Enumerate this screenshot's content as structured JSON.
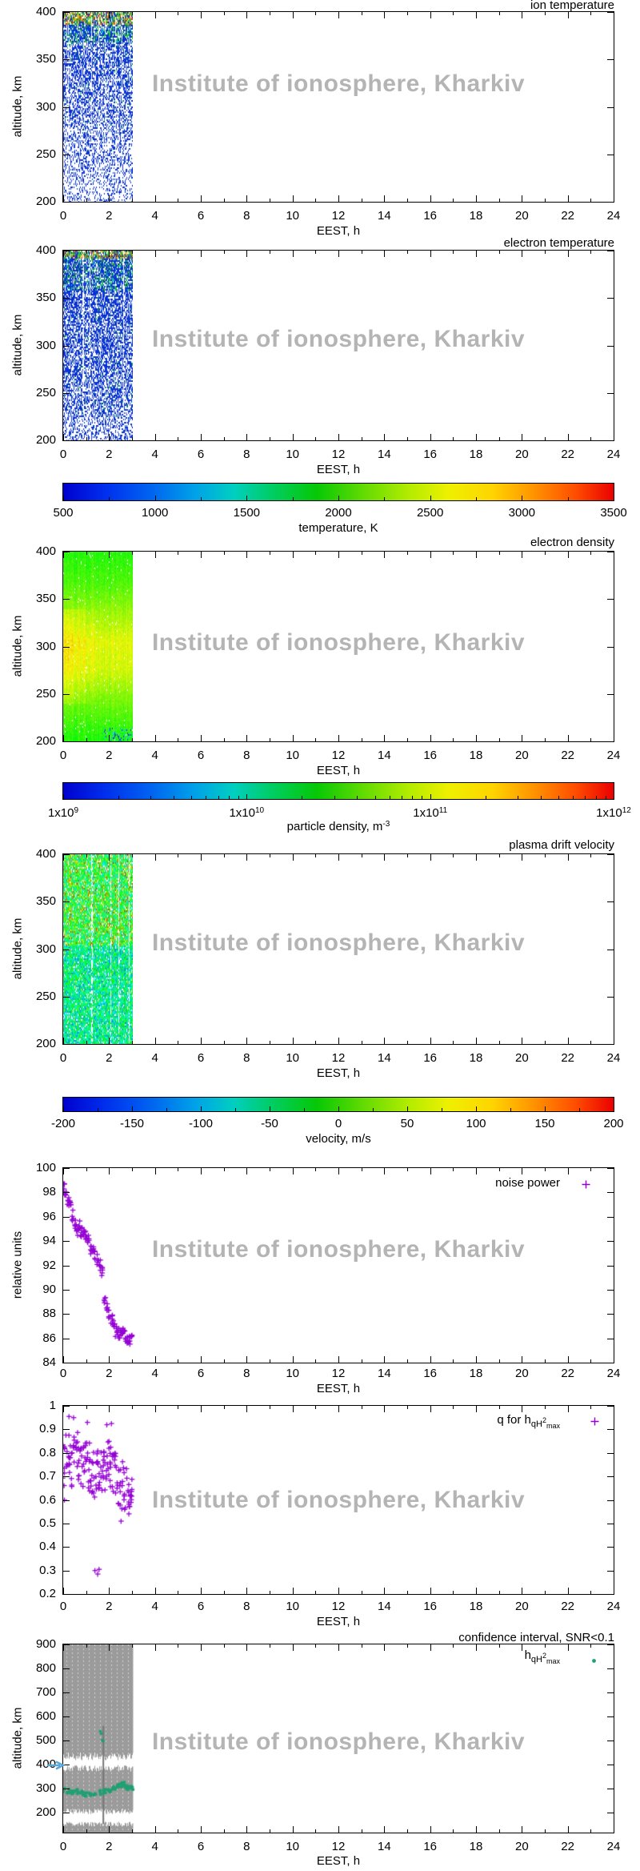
{
  "watermark": "Institute of ionosphere, Kharkiv",
  "x_axis": {
    "label": "EEST, h",
    "range": [
      0,
      24
    ],
    "major_step": 2,
    "minor_step": 1,
    "tick_labels": [
      "0",
      "2",
      "4",
      "6",
      "8",
      "10",
      "12",
      "14",
      "16",
      "18",
      "20",
      "22",
      "24"
    ]
  },
  "colors": {
    "marker_purple": "#9400d3",
    "marker_green": "#1fa173",
    "confidence_gray": "#9b9b9b",
    "watermark_gray": "#b4b4b4",
    "arrow_blue": "#5aa7d8",
    "heat_blue": "#0a2ee2",
    "heat_green": "#2fc42f"
  },
  "chart_data": [
    {
      "kind": "heatmap",
      "type": "heatmap",
      "style": "ti",
      "title": "ion temperature",
      "ylabel": "altitude, km",
      "xlabel": "EEST, h",
      "y_range": [
        200,
        400
      ],
      "data_time_extent": [
        0,
        3.05
      ],
      "y_ticks": [
        {
          "l": "400",
          "v": 400
        },
        {
          "l": "350",
          "v": 350
        },
        {
          "l": "300",
          "v": 300
        },
        {
          "l": "250",
          "v": 250
        },
        {
          "l": "200",
          "v": 200
        }
      ],
      "data_summary": "Ion temperature measured 00:00-03:00 EEST, 200-400 km; mostly 500-1200 K (blue) with 1500-3500 K (green/yellow/red) above ~380 km; sparse data below 260 km"
    },
    {
      "kind": "heatmap",
      "type": "heatmap",
      "style": "te",
      "title": "electron temperature",
      "ylabel": "altitude, km",
      "xlabel": "EEST, h",
      "y_range": [
        200,
        400
      ],
      "data_time_extent": [
        0,
        3.05
      ],
      "y_ticks": [
        {
          "l": "400",
          "v": 400
        },
        {
          "l": "350",
          "v": 350
        },
        {
          "l": "300",
          "v": 300
        },
        {
          "l": "250",
          "v": 250
        },
        {
          "l": "200",
          "v": 200
        }
      ],
      "data_summary": "Electron temperature 00:00-03:00 EEST, 200-400 km; mostly 500-1200 K (blue), 1500-3500 K mixed colors above ~390 km; sparse below 230 km"
    },
    {
      "kind": "colorbar",
      "scale": "linear",
      "label": "temperature, K",
      "range": [
        500,
        3500
      ],
      "tick_values": [
        500,
        1000,
        1500,
        2000,
        2500,
        3000,
        3500
      ],
      "tick_labels": [
        "500",
        "1000",
        "1500",
        "2000",
        "2500",
        "3000",
        "3500"
      ]
    },
    {
      "kind": "heatmap",
      "type": "heatmap",
      "style": "ne",
      "title": "electron density",
      "ylabel": "altitude, km",
      "xlabel": "EEST, h",
      "y_range": [
        200,
        400
      ],
      "data_time_extent": [
        0,
        3.05
      ],
      "y_ticks": [
        {
          "l": "400",
          "v": 400
        },
        {
          "l": "350",
          "v": 350
        },
        {
          "l": "300",
          "v": 300
        },
        {
          "l": "250",
          "v": 250
        },
        {
          "l": "200",
          "v": 200
        }
      ],
      "data_summary": "Electron density 00:00-03:00 EEST; ~1x10^10 - 1x10^11 m^-3; maximum (yellow) near 280-310 km, green toward 200 and 400 km, few blue/cyan specks below 215 km after 02:00"
    },
    {
      "kind": "colorbar",
      "scale": "log",
      "label_main": "particle density, m",
      "label_sup": "-3",
      "range_exponents": [
        9,
        12
      ],
      "tick_labels": [
        {
          "base": "1x10",
          "sup": "9",
          "frac": 0
        },
        {
          "base": "1x10",
          "sup": "10",
          "frac": 0.3333
        },
        {
          "base": "1x10",
          "sup": "11",
          "frac": 0.6667
        },
        {
          "base": "1x10",
          "sup": "12",
          "frac": 1
        }
      ]
    },
    {
      "kind": "heatmap",
      "type": "heatmap",
      "style": "v",
      "title": "plasma drift velocity",
      "ylabel": "altitude, km",
      "xlabel": "EEST, h",
      "y_range": [
        200,
        400
      ],
      "data_time_extent": [
        0,
        3.05
      ],
      "y_ticks": [
        {
          "l": "400",
          "v": 400
        },
        {
          "l": "350",
          "v": 350
        },
        {
          "l": "300",
          "v": 300
        },
        {
          "l": "250",
          "v": 250
        },
        {
          "l": "200",
          "v": 200
        }
      ],
      "data_summary": "Plasma drift velocity 00:00-03:00 EEST; mostly -150..0 m/s (blue/cyan/green), positive spots (yellow/orange/red) mainly above 300 km"
    },
    {
      "kind": "colorbar",
      "scale": "linear",
      "label": "velocity, m/s",
      "range": [
        -200,
        200
      ],
      "tick_values": [
        -200,
        -150,
        -100,
        -50,
        0,
        50,
        100,
        150,
        200
      ],
      "tick_labels": [
        "-200",
        "-150",
        "-100",
        "-50",
        "0",
        "50",
        "100",
        "150",
        "200"
      ]
    },
    {
      "kind": "scatter",
      "type": "scatter",
      "legend": {
        "text": "noise power"
      },
      "ylabel": "relative units",
      "xlabel": "EEST, h",
      "y_range": [
        84,
        100
      ],
      "marker": "plus",
      "y_ticks": [
        {
          "l": "100",
          "v": 100
        },
        {
          "l": "98",
          "v": 98
        },
        {
          "l": "96",
          "v": 96
        },
        {
          "l": "94",
          "v": 94
        },
        {
          "l": "92",
          "v": 92
        },
        {
          "l": "90",
          "v": 90
        },
        {
          "l": "88",
          "v": 88
        },
        {
          "l": "86",
          "v": 86
        },
        {
          "l": "84",
          "v": 84
        }
      ],
      "trend_points": [
        [
          0.05,
          98.5
        ],
        [
          0.1,
          98.1
        ],
        [
          0.2,
          97.3
        ],
        [
          0.3,
          97.1
        ],
        [
          0.4,
          96.1
        ],
        [
          0.5,
          95.3
        ],
        [
          0.6,
          94.9
        ],
        [
          0.7,
          95.3
        ],
        [
          0.8,
          94.8
        ],
        [
          0.9,
          94.9
        ],
        [
          1.0,
          94.4
        ],
        [
          1.1,
          94.2
        ],
        [
          1.2,
          93.4
        ],
        [
          1.3,
          93.1
        ],
        [
          1.4,
          92.8
        ],
        [
          1.5,
          92.5
        ],
        [
          1.6,
          92.0
        ],
        [
          1.7,
          91.4
        ],
        [
          1.8,
          88.9
        ],
        [
          1.9,
          88.5
        ],
        [
          2.0,
          88.1
        ],
        [
          2.1,
          87.6
        ],
        [
          2.2,
          87.0
        ],
        [
          2.3,
          86.6
        ],
        [
          2.4,
          86.4
        ],
        [
          2.5,
          86.3
        ],
        [
          2.6,
          86.4
        ],
        [
          2.7,
          86.2
        ],
        [
          2.8,
          86.0
        ],
        [
          2.9,
          85.9
        ],
        [
          3.0,
          85.9
        ]
      ],
      "points_per_anchor": 5,
      "jitter_t": 0.045,
      "jitter_y": 0.45,
      "seed": 55,
      "data_summary": "Noise power declines from ~98.5 at 00:00 to ~86 at 03:00 EEST with step down near 01:45"
    },
    {
      "kind": "scatter",
      "type": "scatter",
      "legend": {
        "pre": "q for h",
        "sub": "qH",
        "sup": "2",
        "sub2": "max"
      },
      "ylabel": "",
      "xlabel": "EEST, h",
      "y_range": [
        0.2,
        1
      ],
      "marker": "plus",
      "y_ticks": [
        {
          "l": "1",
          "v": 1
        },
        {
          "l": "0.9",
          "v": 0.9
        },
        {
          "l": "0.8",
          "v": 0.8
        },
        {
          "l": "0.7",
          "v": 0.7
        },
        {
          "l": "0.6",
          "v": 0.6
        },
        {
          "l": "0.5",
          "v": 0.5
        },
        {
          "l": "0.4",
          "v": 0.4
        },
        {
          "l": "0.3",
          "v": 0.3
        },
        {
          "l": "0.2",
          "v": 0.2
        }
      ],
      "trend_points": [
        [
          0,
          0.74
        ],
        [
          0.1,
          0.78
        ],
        [
          0.2,
          0.8
        ],
        [
          0.3,
          0.77
        ],
        [
          0.4,
          0.75
        ],
        [
          0.5,
          0.78
        ],
        [
          0.6,
          0.8
        ],
        [
          0.7,
          0.76
        ],
        [
          0.8,
          0.74
        ],
        [
          0.9,
          0.78
        ],
        [
          1.0,
          0.76
        ],
        [
          1.1,
          0.73
        ],
        [
          1.2,
          0.75
        ],
        [
          1.3,
          0.72
        ],
        [
          1.4,
          0.7
        ],
        [
          1.5,
          0.73
        ],
        [
          1.6,
          0.75
        ],
        [
          1.7,
          0.72
        ],
        [
          1.8,
          0.74
        ],
        [
          1.9,
          0.76
        ],
        [
          2.0,
          0.78
        ],
        [
          2.1,
          0.74
        ],
        [
          2.2,
          0.72
        ],
        [
          2.3,
          0.7
        ],
        [
          2.4,
          0.68
        ],
        [
          2.5,
          0.66
        ],
        [
          2.6,
          0.67
        ],
        [
          2.7,
          0.65
        ],
        [
          2.8,
          0.64
        ],
        [
          2.9,
          0.63
        ],
        [
          3.0,
          0.62
        ]
      ],
      "outliers": [
        [
          0.25,
          0.955
        ],
        [
          0.45,
          0.95
        ],
        [
          1.05,
          0.93
        ],
        [
          1.38,
          0.3
        ],
        [
          1.5,
          0.285
        ],
        [
          1.56,
          0.305
        ],
        [
          1.9,
          0.92
        ],
        [
          2.1,
          0.925
        ],
        [
          2.52,
          0.51
        ],
        [
          0.05,
          0.6
        ]
      ],
      "points_per_anchor": 6,
      "jitter_t": 0.06,
      "jitter_y": 0.1,
      "seed": 66,
      "data_summary": "Quality factor q scattered 0.55-0.95 between 00:00 and 03:00 EEST, slowly decreasing; few outliers near 0.28-0.31 and 0.51"
    },
    {
      "kind": "confidence",
      "type": "scatter",
      "title": "confidence interval, SNR<0.1",
      "legend": {
        "pre": "h",
        "sub": "qH",
        "sup": "2",
        "sub2": "max"
      },
      "ylabel": "altitude, km",
      "xlabel": "EEST, h",
      "y_range": [
        115,
        900
      ],
      "marker": "dot",
      "y_ticks": [
        {
          "l": "900",
          "v": 900
        },
        {
          "l": "800",
          "v": 800
        },
        {
          "l": "700",
          "v": 700
        },
        {
          "l": "600",
          "v": 600
        },
        {
          "l": "500",
          "v": 500
        },
        {
          "l": "400",
          "v": 400
        },
        {
          "l": "300",
          "v": 300
        },
        {
          "l": "200",
          "v": 200
        }
      ],
      "gray_region_time": [
        0,
        3.05
      ],
      "white_band_altitudes": [
        [
          370,
          450
        ],
        [
          140,
          215
        ]
      ],
      "dark_streak_time": 1.75,
      "arrow_altitude": 400,
      "trend_points": [
        [
          0,
          292
        ],
        [
          0.2,
          288
        ],
        [
          0.4,
          284
        ],
        [
          0.6,
          286
        ],
        [
          0.8,
          280
        ],
        [
          1.0,
          274
        ],
        [
          1.2,
          270
        ],
        [
          1.4,
          276
        ],
        [
          1.6,
          282
        ],
        [
          1.8,
          286
        ],
        [
          2.0,
          292
        ],
        [
          2.2,
          300
        ],
        [
          2.4,
          308
        ],
        [
          2.5,
          314
        ],
        [
          2.6,
          316
        ],
        [
          2.7,
          308
        ],
        [
          2.8,
          302
        ],
        [
          2.9,
          300
        ],
        [
          3.0,
          298
        ]
      ],
      "outliers": [
        [
          1.62,
          538
        ],
        [
          1.66,
          528
        ],
        [
          1.7,
          500
        ],
        [
          1.74,
          497
        ]
      ],
      "points_per_anchor": 6,
      "jitter_t": 0.07,
      "jitter_y": 9,
      "seed": 77,
      "data_summary": "Height of max qH2: teal points ~270-320 km for 00:00-03:00 EEST, few points ~500-540 km near 01:40; gray confidence-interval region spans full altitude range with white uncertainty bands near 400 km and 150-210 km; arrow marks 400 km"
    }
  ]
}
